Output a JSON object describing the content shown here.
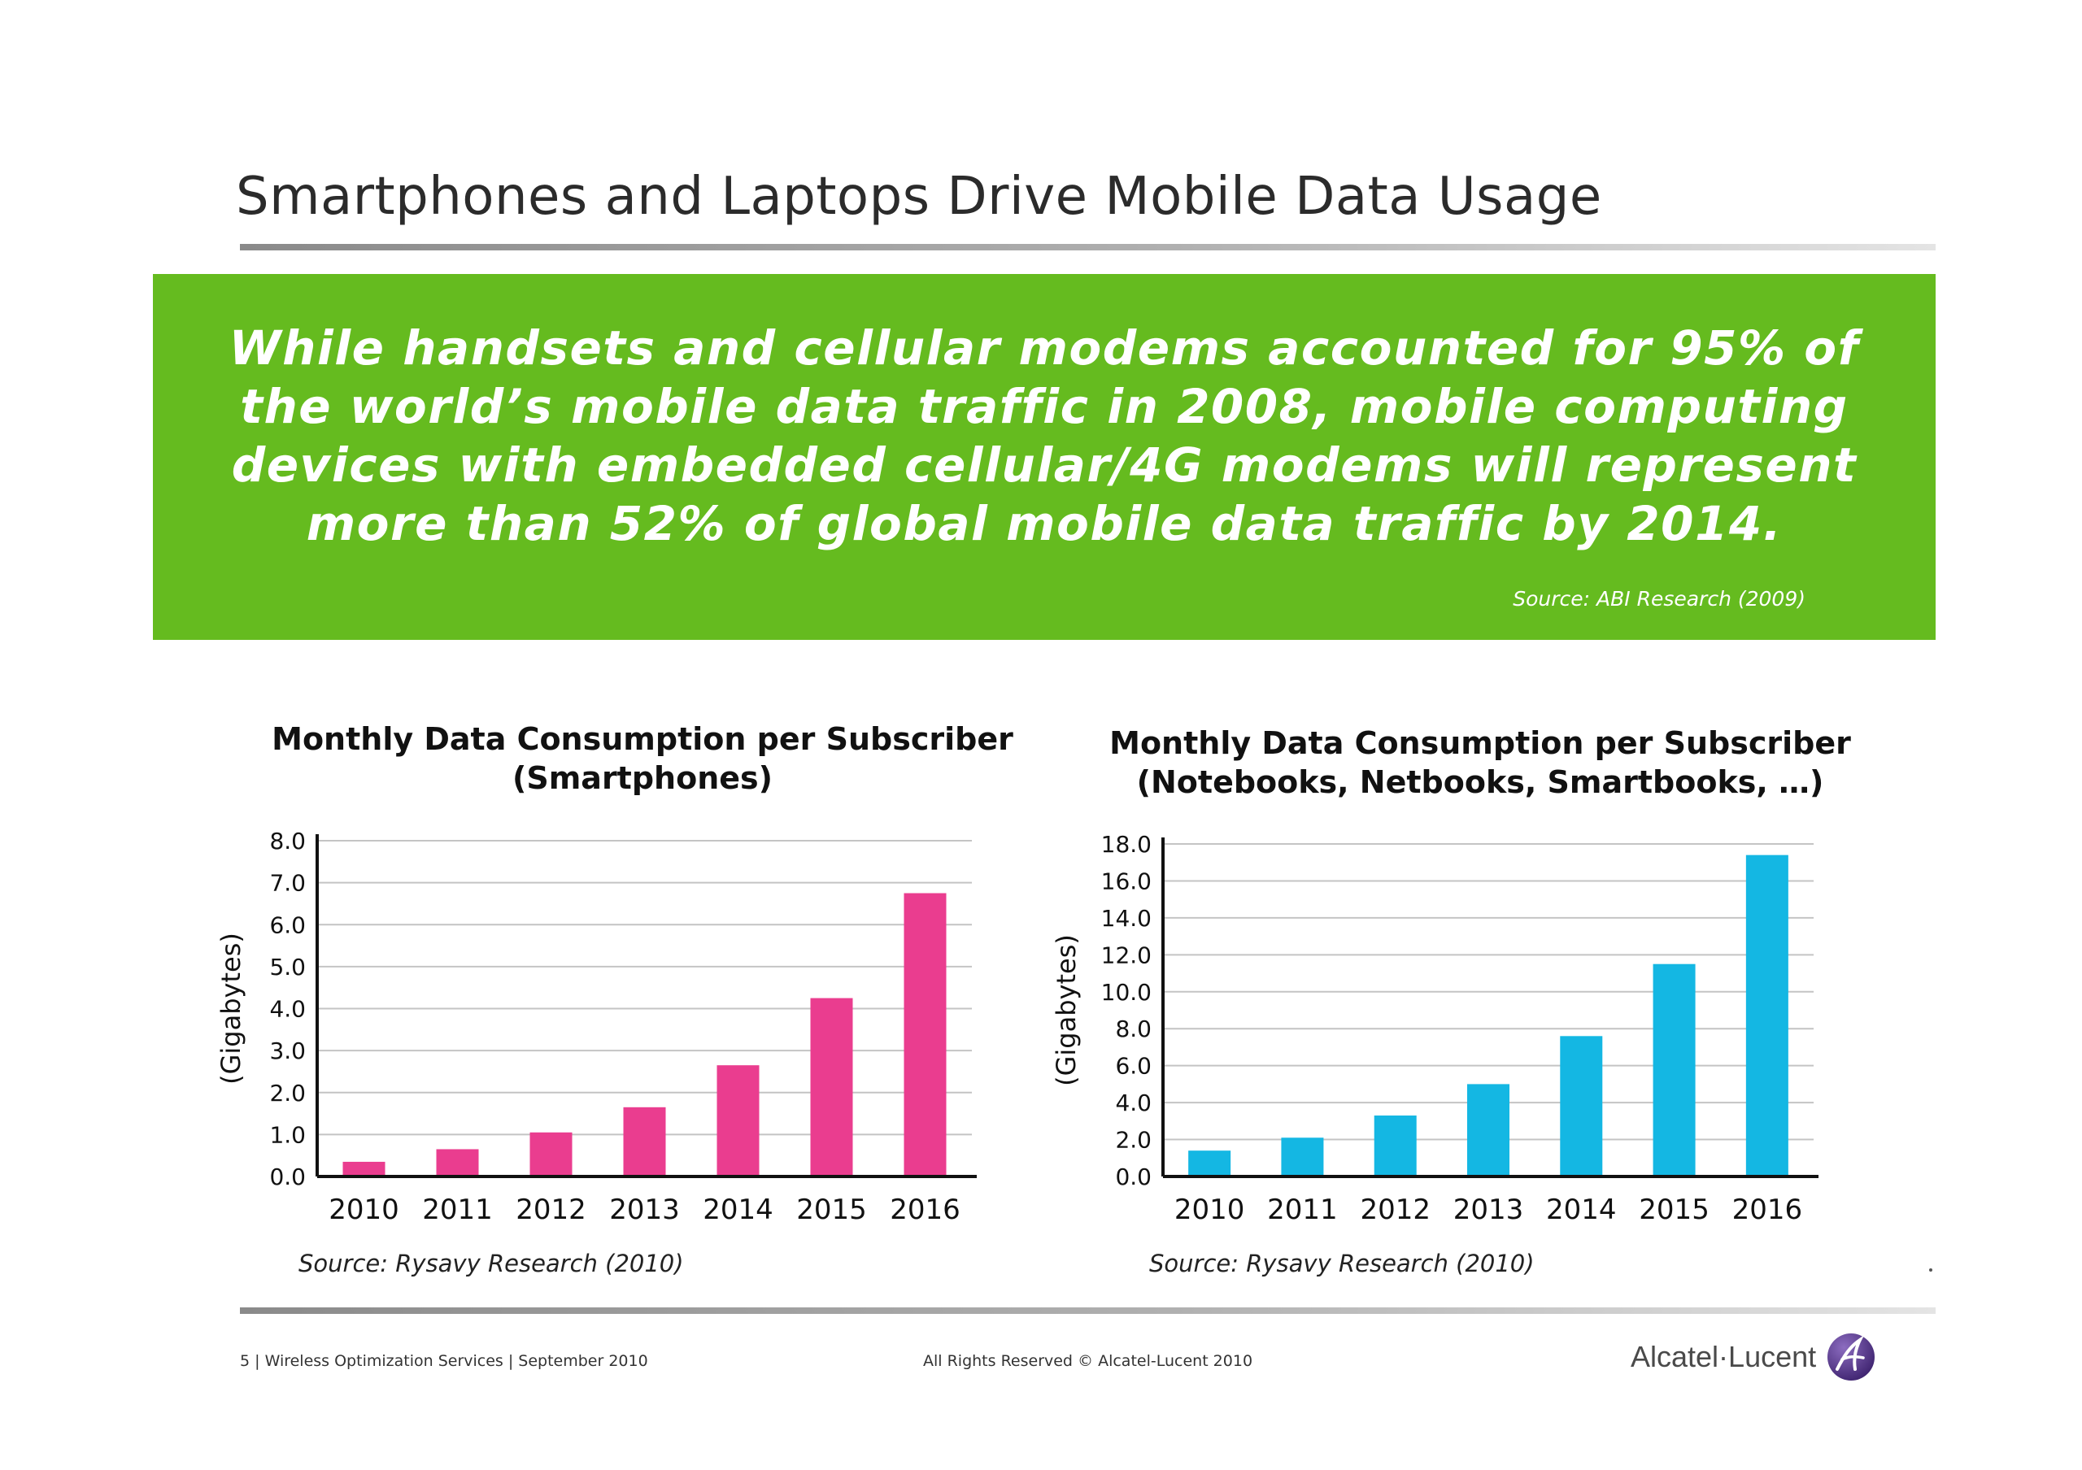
{
  "title": "Smartphones and Laptops Drive Mobile Data Usage",
  "banner": {
    "quote_lines": [
      "While handsets and cellular modems accounted for 95% of",
      "the world’s mobile data traffic in 2008, mobile computing",
      "devices with embedded cellular/4G modems will represent",
      "more than 52% of global mobile data traffic by 2014."
    ],
    "source": "Source: ABI Research (2009)"
  },
  "chart_data": [
    {
      "type": "bar",
      "title": "Monthly Data Consumption per Subscriber",
      "subtitle": "(Smartphones)",
      "ylabel": "(Gigabytes)",
      "xlabel": "",
      "categories": [
        "2010",
        "2011",
        "2012",
        "2013",
        "2014",
        "2015",
        "2016"
      ],
      "values": [
        0.35,
        0.65,
        1.05,
        1.65,
        2.65,
        4.25,
        6.75
      ],
      "ylim": [
        0,
        8
      ],
      "yticks": [
        "0.0",
        "1.0",
        "2.0",
        "3.0",
        "4.0",
        "5.0",
        "6.0",
        "7.0",
        "8.0"
      ],
      "grid": true,
      "color": "#ea3d8f",
      "source": "Source: Rysavy Research (2010)"
    },
    {
      "type": "bar",
      "title": "Monthly Data Consumption per Subscriber",
      "subtitle": "(Notebooks, Netbooks, Smartbooks, …)",
      "ylabel": "(Gigabytes)",
      "xlabel": "",
      "categories": [
        "2010",
        "2011",
        "2012",
        "2013",
        "2014",
        "2015",
        "2016"
      ],
      "values": [
        1.4,
        2.1,
        3.3,
        5.0,
        7.6,
        11.5,
        17.4
      ],
      "ylim": [
        0,
        18
      ],
      "yticks": [
        "0.0",
        "2.0",
        "4.0",
        "6.0",
        "8.0",
        "10.0",
        "12.0",
        "14.0",
        "16.0",
        "18.0"
      ],
      "grid": true,
      "color": "#14b7e3",
      "source": "Source: Rysavy Research (2010)"
    }
  ],
  "footer": {
    "left": "5 | Wireless Optimization Services | September 2010",
    "center": "All Rights Reserved © Alcatel-Lucent 2010",
    "logo_text": "Alcatel·Lucent",
    "logo_icon": "alcatel-lucent-a-icon",
    "logo_color": "#5b3a8f"
  }
}
